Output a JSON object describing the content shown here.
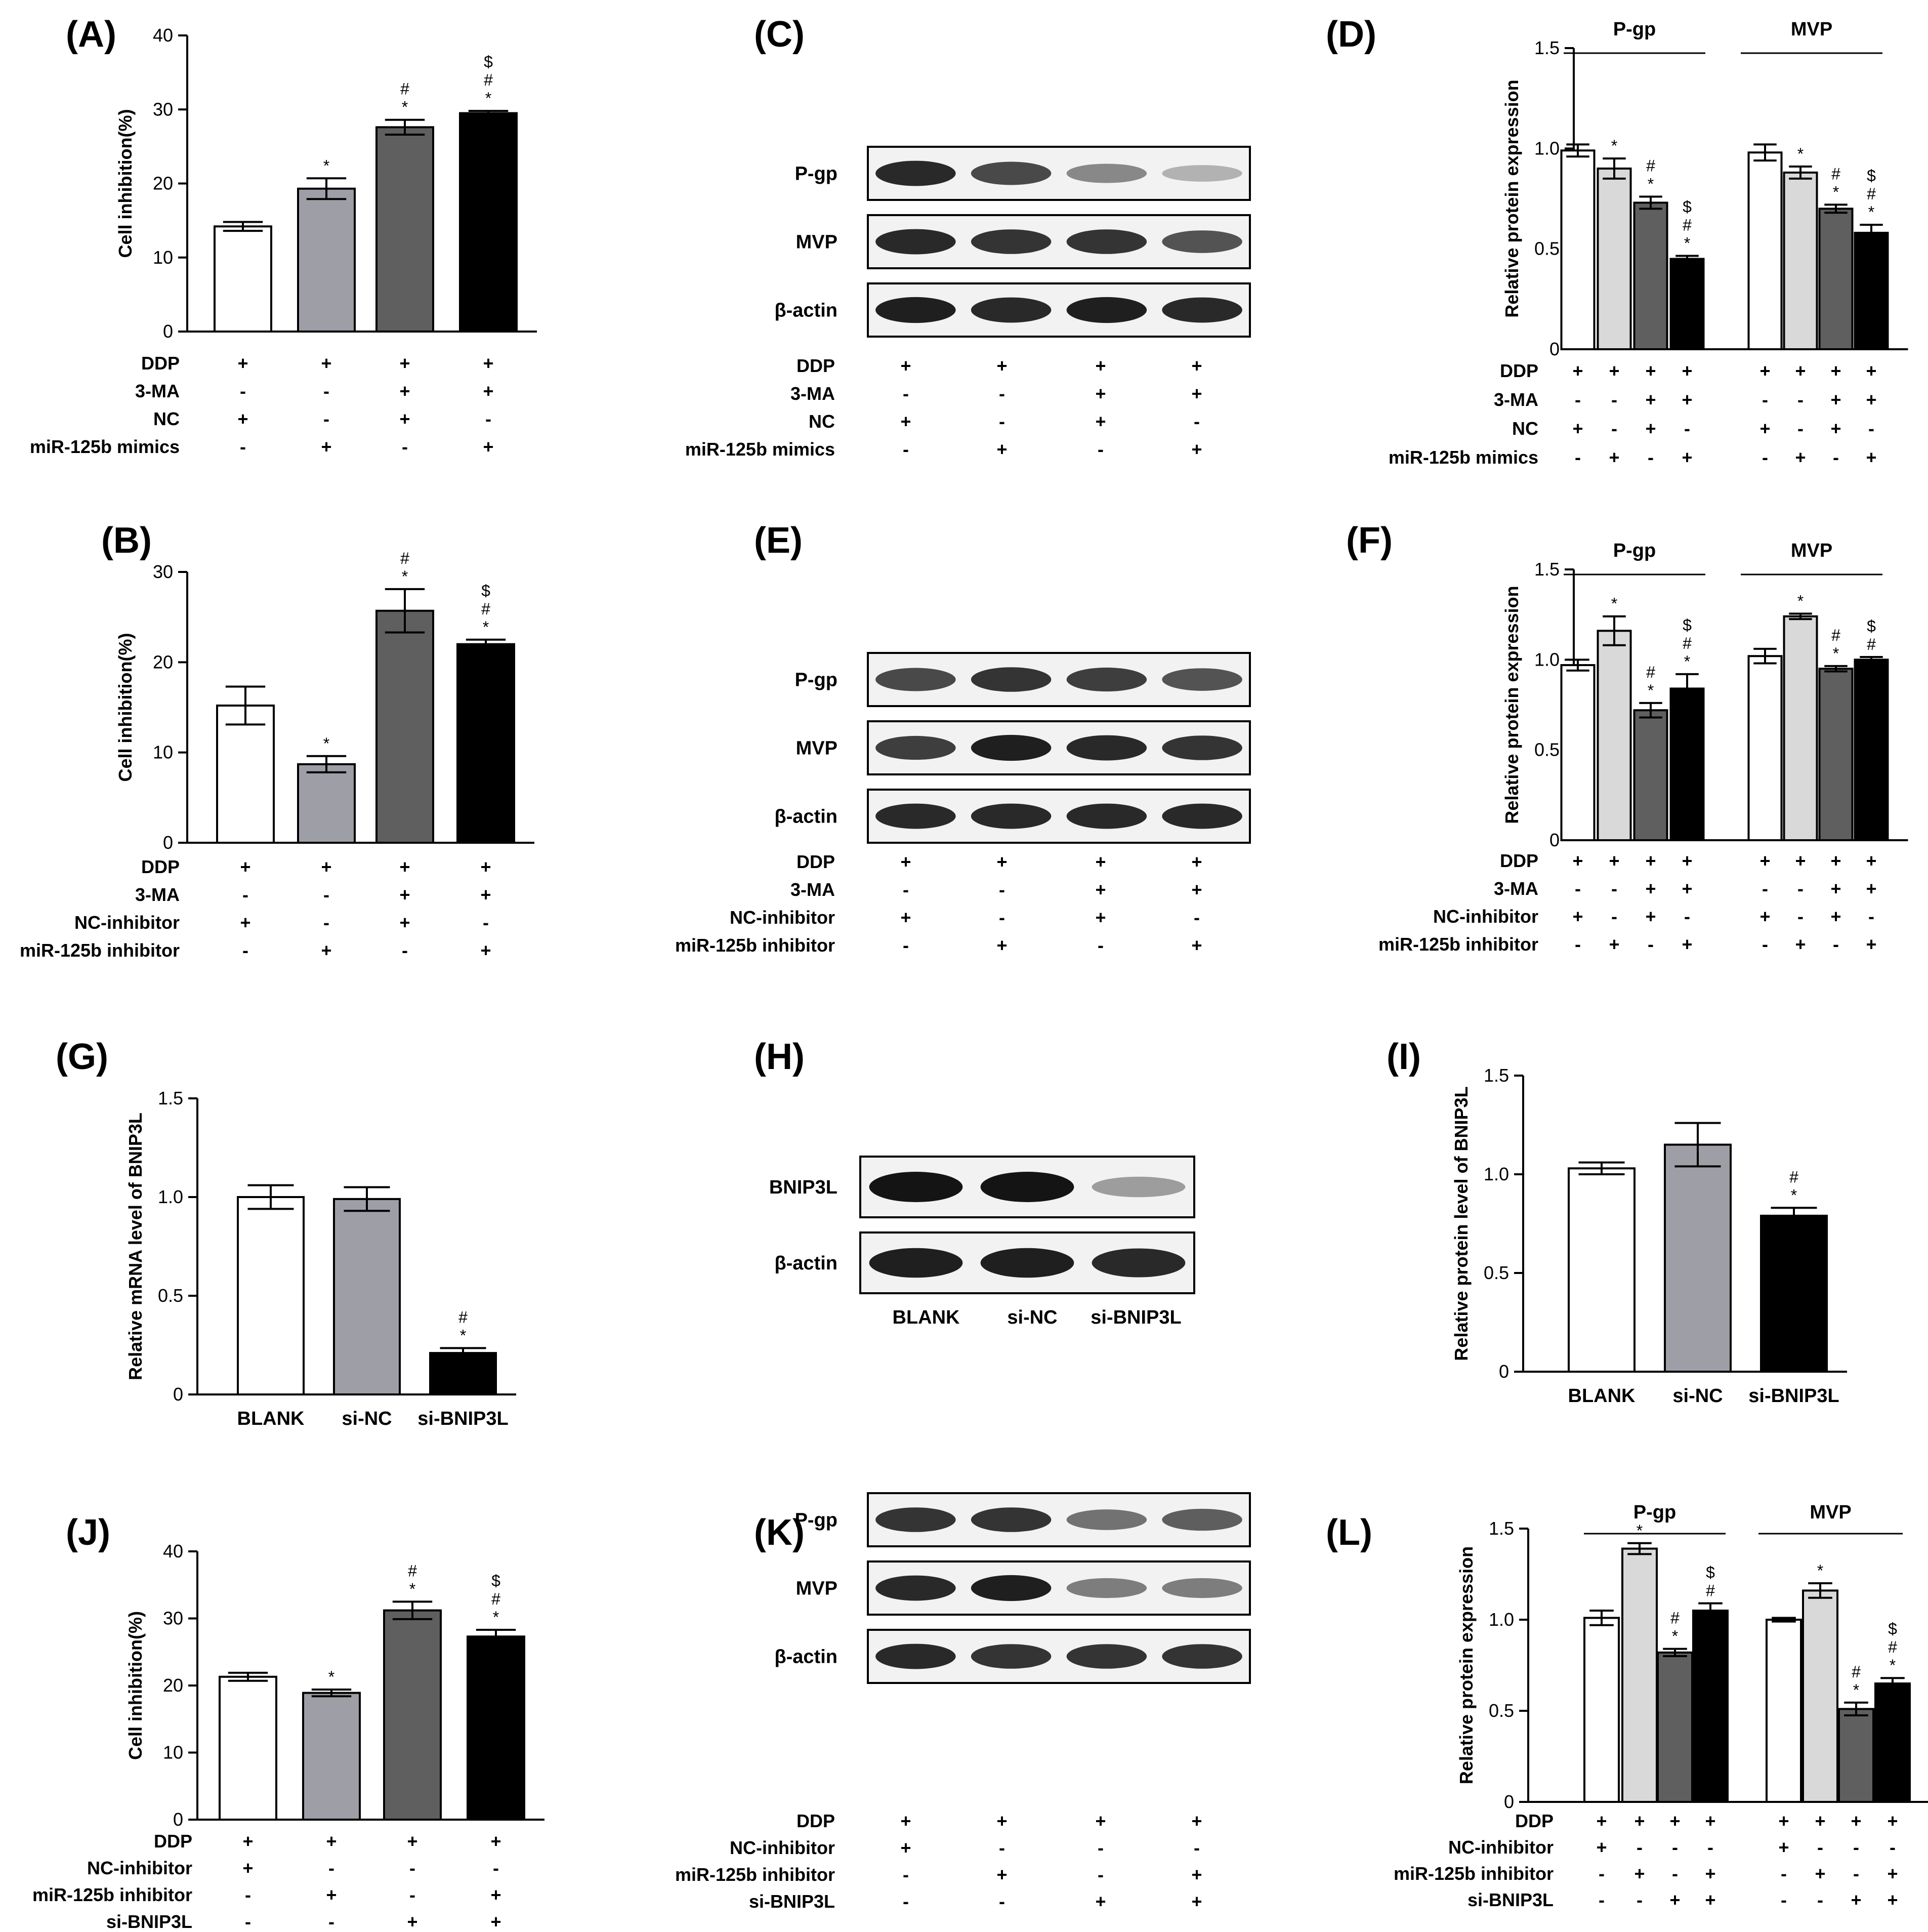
{
  "figure": {
    "panel_labels": [
      "(A)",
      "(B)",
      "(C)",
      "(D)",
      "(E)",
      "(F)",
      "(G)",
      "(H)",
      "(I)",
      "(J)",
      "(K)",
      "(L)"
    ]
  },
  "colors": {
    "white": "#ffffff",
    "light": "#d9d9d9",
    "mid": "#9e9ea6",
    "dark": "#5f5f5f",
    "black": "#000000"
  },
  "chart_data": [
    {
      "panel": "A",
      "type": "bar",
      "ylabel": "Cell inhibition(%)",
      "ylim": [
        0,
        40
      ],
      "yticks": [
        "0",
        "10",
        "20",
        "30",
        "40"
      ],
      "groups": [
        {
          "name": "",
          "bars": [
            {
              "value": 14.2,
              "error": 0.6,
              "color": "white",
              "annotation": []
            },
            {
              "value": 19.3,
              "error": 1.4,
              "color": "mid",
              "annotation": [
                "*"
              ]
            },
            {
              "value": 27.6,
              "error": 1.0,
              "color": "dark",
              "annotation": [
                "#",
                "*"
              ]
            },
            {
              "value": 29.5,
              "error": 0.3,
              "color": "black",
              "annotation": [
                "$",
                "#",
                "*"
              ]
            }
          ]
        }
      ],
      "conditions": [
        {
          "label": "DDP",
          "signs": [
            "+",
            "+",
            "+",
            "+"
          ]
        },
        {
          "label": "3-MA",
          "signs": [
            "-",
            "-",
            "+",
            "+"
          ]
        },
        {
          "label": "NC",
          "signs": [
            "+",
            "-",
            "+",
            "-"
          ]
        },
        {
          "label": "miR-125b mimics",
          "signs": [
            "-",
            "+",
            "-",
            "+"
          ]
        }
      ]
    },
    {
      "panel": "B",
      "type": "bar",
      "ylabel": "Cell inhibition(%)",
      "ylim": [
        0,
        30
      ],
      "yticks": [
        "0",
        "10",
        "20",
        "30"
      ],
      "groups": [
        {
          "name": "",
          "bars": [
            {
              "value": 15.2,
              "error": 2.1,
              "color": "white",
              "annotation": []
            },
            {
              "value": 8.7,
              "error": 0.9,
              "color": "mid",
              "annotation": [
                "*"
              ]
            },
            {
              "value": 25.7,
              "error": 2.4,
              "color": "dark",
              "annotation": [
                "#",
                "*"
              ]
            },
            {
              "value": 22.0,
              "error": 0.5,
              "color": "black",
              "annotation": [
                "$",
                "#",
                "*"
              ]
            }
          ]
        }
      ],
      "conditions": [
        {
          "label": "DDP",
          "signs": [
            "+",
            "+",
            "+",
            "+"
          ]
        },
        {
          "label": "3-MA",
          "signs": [
            "-",
            "-",
            "+",
            "+"
          ]
        },
        {
          "label": "NC-inhibitor",
          "signs": [
            "+",
            "-",
            "+",
            "-"
          ]
        },
        {
          "label": "miR-125b inhibitor",
          "signs": [
            "-",
            "+",
            "-",
            "+"
          ]
        }
      ]
    },
    {
      "panel": "D",
      "type": "bar",
      "ylabel": "Relative protein expression",
      "ylim": [
        0,
        1.5
      ],
      "yticks": [
        "0",
        "0.5",
        "1.0",
        "1.5"
      ],
      "groups": [
        {
          "name": "P-gp",
          "bars": [
            {
              "value": 0.99,
              "error": 0.03,
              "color": "white",
              "annotation": []
            },
            {
              "value": 0.9,
              "error": 0.05,
              "color": "light",
              "annotation": [
                "*"
              ]
            },
            {
              "value": 0.73,
              "error": 0.03,
              "color": "dark",
              "annotation": [
                "#",
                "*"
              ]
            },
            {
              "value": 0.45,
              "error": 0.015,
              "color": "black",
              "annotation": [
                "$",
                "#",
                "*"
              ]
            }
          ]
        },
        {
          "name": "MVP",
          "bars": [
            {
              "value": 0.98,
              "error": 0.04,
              "color": "white",
              "annotation": []
            },
            {
              "value": 0.88,
              "error": 0.03,
              "color": "light",
              "annotation": [
                "*"
              ]
            },
            {
              "value": 0.7,
              "error": 0.02,
              "color": "dark",
              "annotation": [
                "#",
                "*"
              ]
            },
            {
              "value": 0.58,
              "error": 0.04,
              "color": "black",
              "annotation": [
                "$",
                "#",
                "*"
              ]
            }
          ]
        }
      ],
      "conditions": [
        {
          "label": "DDP",
          "signs": [
            "+",
            "+",
            "+",
            "+"
          ]
        },
        {
          "label": "3-MA",
          "signs": [
            "-",
            "-",
            "+",
            "+"
          ]
        },
        {
          "label": "NC",
          "signs": [
            "+",
            "-",
            "+",
            "-"
          ]
        },
        {
          "label": "miR-125b mimics",
          "signs": [
            "-",
            "+",
            "-",
            "+"
          ]
        }
      ]
    },
    {
      "panel": "F",
      "type": "bar",
      "ylabel": "Relative protein expression",
      "ylim": [
        0,
        1.5
      ],
      "yticks": [
        "0",
        "0.5",
        "1.0",
        "1.5"
      ],
      "groups": [
        {
          "name": "P-gp",
          "bars": [
            {
              "value": 0.97,
              "error": 0.03,
              "color": "white",
              "annotation": []
            },
            {
              "value": 1.16,
              "error": 0.08,
              "color": "light",
              "annotation": [
                "*"
              ]
            },
            {
              "value": 0.72,
              "error": 0.04,
              "color": "dark",
              "annotation": [
                "#",
                "*"
              ]
            },
            {
              "value": 0.84,
              "error": 0.08,
              "color": "black",
              "annotation": [
                "$",
                "#",
                "*"
              ]
            }
          ]
        },
        {
          "name": "MVP",
          "bars": [
            {
              "value": 1.02,
              "error": 0.04,
              "color": "white",
              "annotation": []
            },
            {
              "value": 1.24,
              "error": 0.015,
              "color": "light",
              "annotation": [
                "*"
              ]
            },
            {
              "value": 0.95,
              "error": 0.015,
              "color": "dark",
              "annotation": [
                "#",
                "*"
              ]
            },
            {
              "value": 1.0,
              "error": 0.015,
              "color": "black",
              "annotation": [
                "$",
                "#"
              ]
            }
          ]
        }
      ],
      "conditions": [
        {
          "label": "DDP",
          "signs": [
            "+",
            "+",
            "+",
            "+"
          ]
        },
        {
          "label": "3-MA",
          "signs": [
            "-",
            "-",
            "+",
            "+"
          ]
        },
        {
          "label": "NC-inhibitor",
          "signs": [
            "+",
            "-",
            "+",
            "-"
          ]
        },
        {
          "label": "miR-125b inhibitor",
          "signs": [
            "-",
            "+",
            "-",
            "+"
          ]
        }
      ]
    },
    {
      "panel": "G",
      "type": "bar",
      "ylabel": "Relative mRNA level of BNIP3L",
      "ylim": [
        0,
        1.5
      ],
      "yticks": [
        "0",
        "0.5",
        "1.0",
        "1.5"
      ],
      "categories": [
        "BLANK",
        "si-NC",
        "si-BNIP3L"
      ],
      "groups": [
        {
          "name": "",
          "bars": [
            {
              "value": 1.0,
              "error": 0.06,
              "color": "white",
              "annotation": []
            },
            {
              "value": 0.99,
              "error": 0.06,
              "color": "mid",
              "annotation": []
            },
            {
              "value": 0.21,
              "error": 0.025,
              "color": "black",
              "annotation": [
                "#",
                "*"
              ]
            }
          ]
        }
      ]
    },
    {
      "panel": "I",
      "type": "bar",
      "ylabel": "Relative protein level of BNIP3L",
      "ylim": [
        0,
        1.5
      ],
      "yticks": [
        "0",
        "0.5",
        "1.0",
        "1.5"
      ],
      "categories": [
        "BLANK",
        "si-NC",
        "si-BNIP3L"
      ],
      "groups": [
        {
          "name": "",
          "bars": [
            {
              "value": 1.03,
              "error": 0.03,
              "color": "white",
              "annotation": []
            },
            {
              "value": 1.15,
              "error": 0.11,
              "color": "mid",
              "annotation": []
            },
            {
              "value": 0.79,
              "error": 0.04,
              "color": "black",
              "annotation": [
                "#",
                "*"
              ]
            }
          ]
        }
      ]
    },
    {
      "panel": "J",
      "type": "bar",
      "ylabel": "Cell inhibition(%)",
      "ylim": [
        0,
        40
      ],
      "yticks": [
        "0",
        "10",
        "20",
        "30",
        "40"
      ],
      "groups": [
        {
          "name": "",
          "bars": [
            {
              "value": 21.3,
              "error": 0.6,
              "color": "white",
              "annotation": []
            },
            {
              "value": 18.9,
              "error": 0.5,
              "color": "mid",
              "annotation": [
                "*"
              ]
            },
            {
              "value": 31.2,
              "error": 1.3,
              "color": "dark",
              "annotation": [
                "#",
                "*"
              ]
            },
            {
              "value": 27.3,
              "error": 1.0,
              "color": "black",
              "annotation": [
                "$",
                "#",
                "*"
              ]
            }
          ]
        }
      ],
      "conditions": [
        {
          "label": "DDP",
          "signs": [
            "+",
            "+",
            "+",
            "+"
          ]
        },
        {
          "label": "NC-inhibitor",
          "signs": [
            "+",
            "-",
            "-",
            "-"
          ]
        },
        {
          "label": "miR-125b inhibitor",
          "signs": [
            "-",
            "+",
            "-",
            "+"
          ]
        },
        {
          "label": "si-BNIP3L",
          "signs": [
            "-",
            "-",
            "+",
            "+"
          ]
        }
      ]
    },
    {
      "panel": "L",
      "type": "bar",
      "ylabel": "Relative protein expression",
      "ylim": [
        0,
        1.5
      ],
      "yticks": [
        "0",
        "0.5",
        "1.0",
        "1.5"
      ],
      "groups": [
        {
          "name": "P-gp",
          "bars": [
            {
              "value": 1.01,
              "error": 0.04,
              "color": "white",
              "annotation": []
            },
            {
              "value": 1.39,
              "error": 0.03,
              "color": "light",
              "annotation": [
                "*"
              ]
            },
            {
              "value": 0.82,
              "error": 0.02,
              "color": "dark",
              "annotation": [
                "#",
                "*"
              ]
            },
            {
              "value": 1.05,
              "error": 0.04,
              "color": "black",
              "annotation": [
                "$",
                "#"
              ]
            }
          ]
        },
        {
          "name": "MVP",
          "bars": [
            {
              "value": 1.0,
              "error": 0.01,
              "color": "white",
              "annotation": []
            },
            {
              "value": 1.16,
              "error": 0.04,
              "color": "light",
              "annotation": [
                "*"
              ]
            },
            {
              "value": 0.51,
              "error": 0.035,
              "color": "dark",
              "annotation": [
                "#",
                "*"
              ]
            },
            {
              "value": 0.65,
              "error": 0.03,
              "color": "black",
              "annotation": [
                "$",
                "#",
                "*"
              ]
            }
          ]
        }
      ],
      "conditions": [
        {
          "label": "DDP",
          "signs": [
            "+",
            "+",
            "+",
            "+"
          ]
        },
        {
          "label": "NC-inhibitor",
          "signs": [
            "+",
            "-",
            "-",
            "-"
          ]
        },
        {
          "label": "miR-125b inhibitor",
          "signs": [
            "-",
            "+",
            "-",
            "+"
          ]
        },
        {
          "label": "si-BNIP3L",
          "signs": [
            "-",
            "-",
            "+",
            "+"
          ]
        }
      ]
    }
  ],
  "blots": [
    {
      "panel": "C",
      "rows": [
        {
          "label": "P-gp",
          "intensities": [
            0.9,
            0.75,
            0.45,
            0.25
          ]
        },
        {
          "label": "MVP",
          "intensities": [
            0.9,
            0.85,
            0.85,
            0.7
          ]
        },
        {
          "label": "β-actin",
          "intensities": [
            0.95,
            0.9,
            0.95,
            0.9
          ]
        }
      ],
      "conditions": [
        {
          "label": "DDP",
          "signs": [
            "+",
            "+",
            "+",
            "+"
          ]
        },
        {
          "label": "3-MA",
          "signs": [
            "-",
            "-",
            "+",
            "+"
          ]
        },
        {
          "label": "NC",
          "signs": [
            "+",
            "-",
            "+",
            "-"
          ]
        },
        {
          "label": "miR-125b mimics",
          "signs": [
            "-",
            "+",
            "-",
            "+"
          ]
        }
      ]
    },
    {
      "panel": "E",
      "rows": [
        {
          "label": "P-gp",
          "intensities": [
            0.75,
            0.85,
            0.8,
            0.7
          ]
        },
        {
          "label": "MVP",
          "intensities": [
            0.8,
            0.95,
            0.9,
            0.85
          ]
        },
        {
          "label": "β-actin",
          "intensities": [
            0.9,
            0.9,
            0.9,
            0.9
          ]
        }
      ],
      "conditions": [
        {
          "label": "DDP",
          "signs": [
            "+",
            "+",
            "+",
            "+"
          ]
        },
        {
          "label": "3-MA",
          "signs": [
            "-",
            "-",
            "+",
            "+"
          ]
        },
        {
          "label": "NC-inhibitor",
          "signs": [
            "+",
            "-",
            "+",
            "-"
          ]
        },
        {
          "label": "miR-125b inhibitor",
          "signs": [
            "-",
            "+",
            "-",
            "+"
          ]
        }
      ]
    },
    {
      "panel": "H",
      "rows": [
        {
          "label": "BNIP3L",
          "intensities": [
            1.0,
            1.0,
            0.35
          ]
        },
        {
          "label": "β-actin",
          "intensities": [
            0.95,
            0.95,
            0.9
          ]
        }
      ],
      "lanes": [
        "BLANK",
        "si-NC",
        "si-BNIP3L"
      ]
    },
    {
      "panel": "K",
      "rows": [
        {
          "label": "P-gp",
          "intensities": [
            0.85,
            0.85,
            0.55,
            0.65
          ]
        },
        {
          "label": "MVP",
          "intensities": [
            0.9,
            0.95,
            0.5,
            0.5
          ]
        },
        {
          "label": "β-actin",
          "intensities": [
            0.9,
            0.85,
            0.85,
            0.85
          ]
        }
      ],
      "conditions": [
        {
          "label": "DDP",
          "signs": [
            "+",
            "+",
            "+",
            "+"
          ]
        },
        {
          "label": "NC-inhibitor",
          "signs": [
            "+",
            "-",
            "-",
            "-"
          ]
        },
        {
          "label": "miR-125b inhibitor",
          "signs": [
            "-",
            "+",
            "-",
            "+"
          ]
        },
        {
          "label": "si-BNIP3L",
          "signs": [
            "-",
            "-",
            "+",
            "+"
          ]
        }
      ]
    }
  ]
}
